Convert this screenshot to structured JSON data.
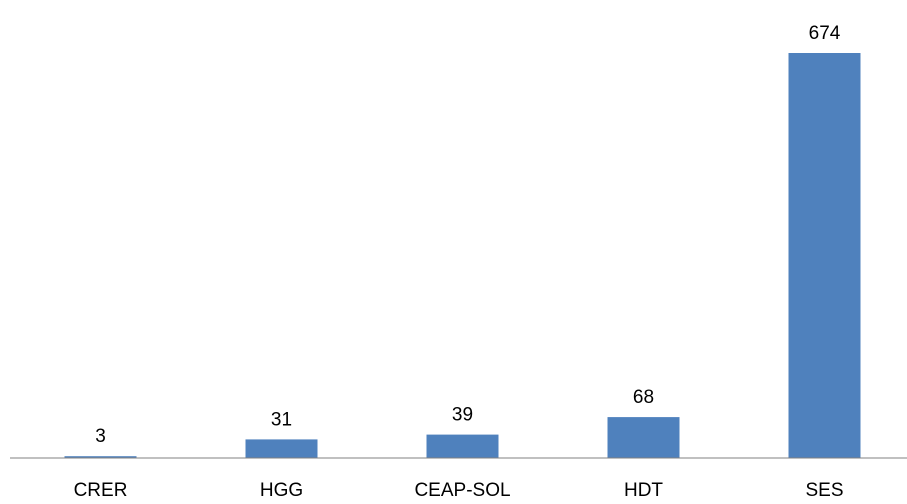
{
  "chart_data": {
    "type": "bar",
    "categories": [
      "CRER",
      "HGG",
      "CEAP-SOL",
      "HDT",
      "SES"
    ],
    "values": [
      3,
      31,
      39,
      68,
      674
    ],
    "data_labels": [
      "3",
      "31",
      "39",
      "68",
      "674"
    ],
    "ylim": [
      0,
      674
    ],
    "grid": false,
    "legend": "none",
    "colors": {
      "bar": "#4f81bd",
      "axis": "#808080",
      "text": "#000000",
      "background": "#ffffff"
    }
  }
}
